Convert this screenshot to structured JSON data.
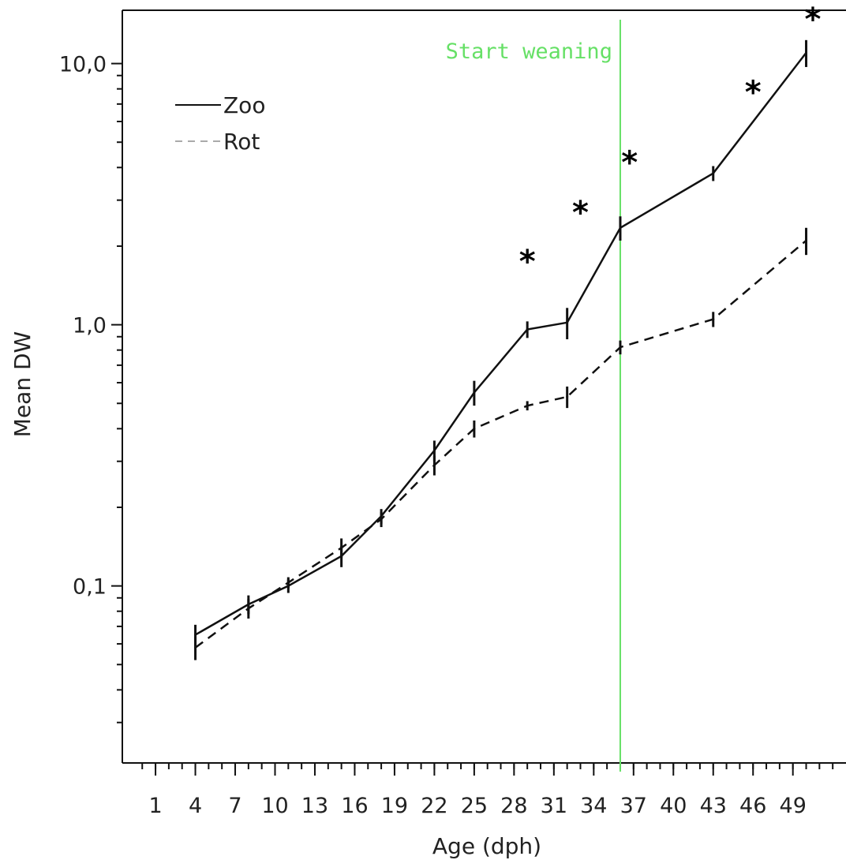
{
  "chart_data": {
    "type": "line",
    "xlabel": "Age (dph)",
    "ylabel": "Mean DW",
    "yscale": "log",
    "xlim": [
      -1.5,
      53
    ],
    "ylim": [
      0.021,
      16
    ],
    "x_tick_labels": [
      "1",
      "4",
      "7",
      "10",
      "13",
      "16",
      "19",
      "22",
      "25",
      "28",
      "31",
      "34",
      "37",
      "40",
      "43",
      "46",
      "49"
    ],
    "y_tick_labels": [
      {
        "value": 0.1,
        "label": "0,1"
      },
      {
        "value": 1.0,
        "label": "1,0"
      },
      {
        "value": 10.0,
        "label": "10,0"
      }
    ],
    "series": [
      {
        "name": "Zoo",
        "style": "solid",
        "color": "#111111",
        "x": [
          4,
          8,
          11,
          15,
          18,
          22,
          25,
          29,
          32,
          36,
          43,
          50
        ],
        "y": [
          0.065,
          0.085,
          0.1,
          0.13,
          0.185,
          0.33,
          0.55,
          0.96,
          1.02,
          2.35,
          3.8,
          11.0
        ],
        "err": [
          0.006,
          0.007,
          0.006,
          0.012,
          0.012,
          0.03,
          0.06,
          0.07,
          0.14,
          0.25,
          0.25,
          1.3
        ]
      },
      {
        "name": "Rot",
        "style": "dashed",
        "color": "#111111",
        "x": [
          4,
          8,
          11,
          15,
          18,
          22,
          25,
          29,
          32,
          36,
          43,
          50
        ],
        "y": [
          0.058,
          0.082,
          0.103,
          0.14,
          0.18,
          0.29,
          0.4,
          0.49,
          0.53,
          0.82,
          1.05,
          2.1
        ],
        "err": [
          0.006,
          0.007,
          0.005,
          0.012,
          0.012,
          0.025,
          0.03,
          0.02,
          0.05,
          0.05,
          0.07,
          0.25
        ]
      }
    ],
    "legend": {
      "position": "top-left"
    },
    "annotations": [
      {
        "type": "vline",
        "x": 36,
        "label": "Start weaning",
        "color": "#66e066"
      },
      {
        "type": "significance",
        "symbol": "*",
        "points": [
          {
            "x": 29,
            "y": 1.75
          },
          {
            "x": 33,
            "y": 2.7
          },
          {
            "x": 36.7,
            "y": 4.2
          },
          {
            "x": 46,
            "y": 7.8
          },
          {
            "x": 50.5,
            "y": 14.8
          }
        ]
      }
    ],
    "grid": false
  }
}
